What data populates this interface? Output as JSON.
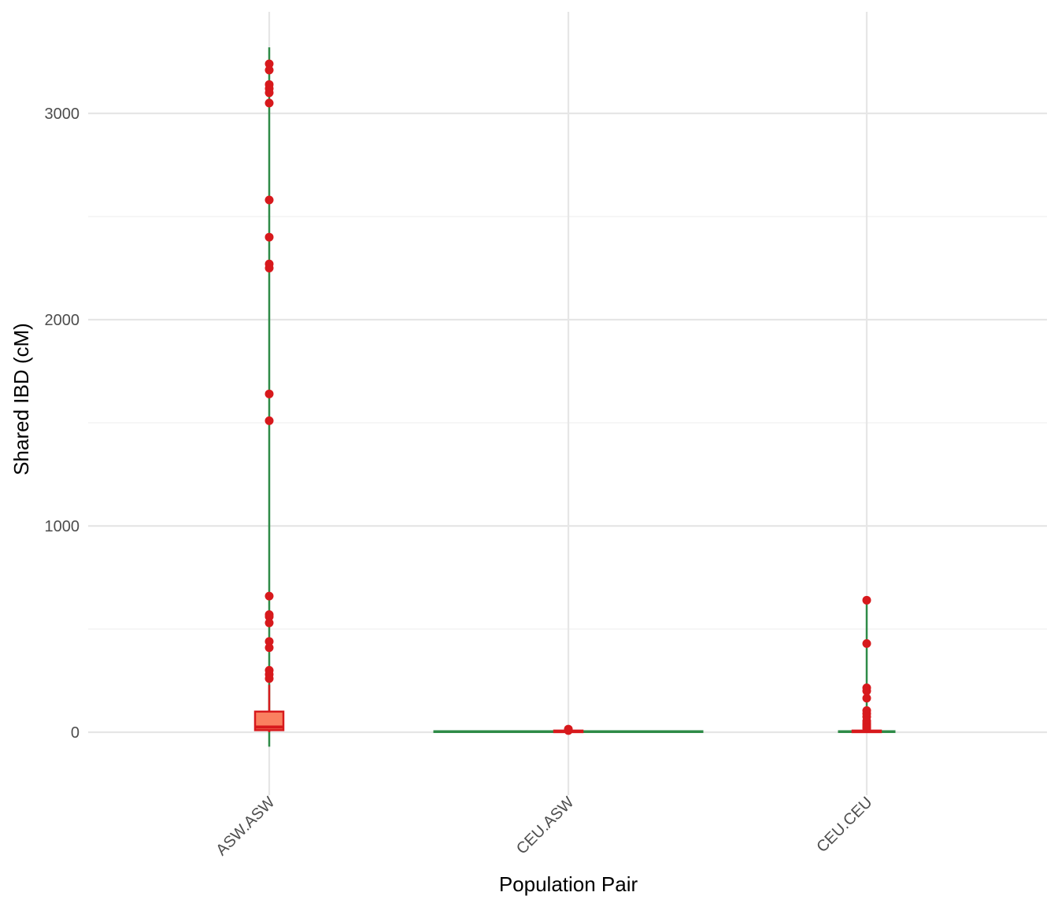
{
  "chart_data": {
    "type": "violin-box",
    "xlabel": "Population Pair",
    "ylabel": "Shared IBD (cM)",
    "categories": [
      "ASW.ASW",
      "CEU.ASW",
      "CEU.CEU"
    ],
    "y_ticks": [
      0,
      1000,
      2000,
      3000
    ],
    "ylim": [
      -300,
      3450
    ],
    "grid": true,
    "legend": "none",
    "colors": {
      "violin": "#2e8b47",
      "box_fill": "#fa8060",
      "box_outline": "#d7191c",
      "outlier": "#d7191c",
      "grid_major": "#e6e6e6",
      "grid_minor": "#f0f0f0"
    },
    "series": [
      {
        "category": "ASW.ASW",
        "violin_range": [
          -70,
          3320
        ],
        "box": {
          "q1": 10,
          "median": 25,
          "q3": 100,
          "whisker_low": 0,
          "whisker_high": 230
        },
        "outliers": [
          3240,
          3210,
          3140,
          3120,
          3100,
          3050,
          2580,
          2400,
          2270,
          2250,
          1640,
          1510,
          660,
          570,
          560,
          530,
          440,
          410,
          300,
          280,
          260
        ]
      },
      {
        "category": "CEU.ASW",
        "violin_range": [
          0,
          15
        ],
        "box": {
          "q1": 2,
          "median": 4,
          "q3": 8,
          "whisker_low": 0,
          "whisker_high": 14
        },
        "outliers": [
          15,
          12,
          10,
          8
        ]
      },
      {
        "category": "CEU.CEU",
        "violin_range": [
          0,
          640
        ],
        "box": {
          "q1": 2,
          "median": 4,
          "q3": 8,
          "whisker_low": 0,
          "whisker_high": 15
        },
        "outliers": [
          640,
          430,
          215,
          200,
          165,
          105,
          90,
          75,
          55,
          45,
          35,
          25,
          18
        ]
      }
    ]
  }
}
